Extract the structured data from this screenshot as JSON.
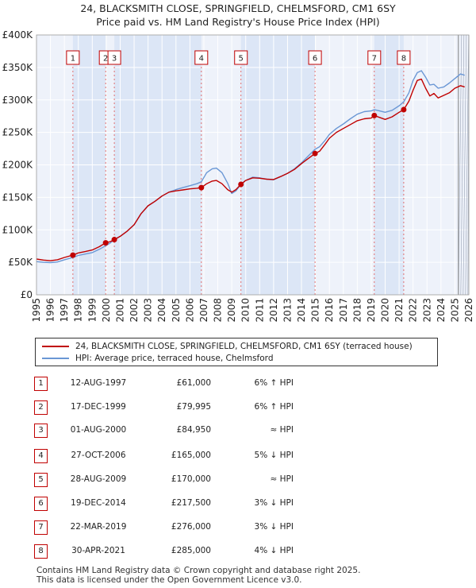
{
  "title": {
    "line1": "24, BLACKSMITH CLOSE, SPRINGFIELD, CHELMSFORD, CM1 6SY",
    "line2": "Price paid vs. HM Land Registry's House Price Index (HPI)"
  },
  "colors": {
    "property_line": "#c00000",
    "hpi_line": "#6a97d5",
    "shade": "#dce6f6",
    "grid": "#ffffff",
    "marker_line": "#e06060"
  },
  "legend": {
    "property_label": "24, BLACKSMITH CLOSE, SPRINGFIELD, CHELMSFORD, CM1 6SY (terraced house)",
    "hpi_label": "HPI: Average price, terraced house, Chelmsford"
  },
  "transactions": [
    {
      "num": "1",
      "date": "12-AUG-1997",
      "price": "£61,000",
      "hpi": "6% ↑ HPI"
    },
    {
      "num": "2",
      "date": "17-DEC-1999",
      "price": "£79,995",
      "hpi": "6% ↑ HPI"
    },
    {
      "num": "3",
      "date": "01-AUG-2000",
      "price": "£84,950",
      "hpi": "≈ HPI"
    },
    {
      "num": "4",
      "date": "27-OCT-2006",
      "price": "£165,000",
      "hpi": "5% ↓ HPI"
    },
    {
      "num": "5",
      "date": "28-AUG-2009",
      "price": "£170,000",
      "hpi": "≈ HPI"
    },
    {
      "num": "6",
      "date": "19-DEC-2014",
      "price": "£217,500",
      "hpi": "3% ↓ HPI"
    },
    {
      "num": "7",
      "date": "22-MAR-2019",
      "price": "£276,000",
      "hpi": "3% ↓ HPI"
    },
    {
      "num": "8",
      "date": "30-APR-2021",
      "price": "£285,000",
      "hpi": "4% ↓ HPI"
    }
  ],
  "footer": {
    "line1": "Contains HM Land Registry data © Crown copyright and database right 2025.",
    "line2": "This data is licensed under the Open Government Licence v3.0."
  },
  "chart_data": {
    "type": "line",
    "xlim": [
      1995,
      2026
    ],
    "ylim": [
      0,
      400000
    ],
    "x_ticks": [
      1995,
      1996,
      1997,
      1998,
      1999,
      2000,
      2001,
      2002,
      2003,
      2004,
      2005,
      2006,
      2007,
      2008,
      2009,
      2010,
      2011,
      2012,
      2013,
      2014,
      2015,
      2016,
      2017,
      2018,
      2019,
      2020,
      2021,
      2022,
      2023,
      2024,
      2025,
      2026
    ],
    "y_ticks": [
      0,
      50000,
      100000,
      150000,
      200000,
      250000,
      300000,
      350000,
      400000
    ],
    "y_tick_labels": [
      "£0",
      "£50K",
      "£100K",
      "£150K",
      "£200K",
      "£250K",
      "£300K",
      "£350K",
      "£400K"
    ],
    "forecast_start": 2025.25,
    "shaded_ranges": [
      [
        1997.61,
        1999.96
      ],
      [
        2000.58,
        2006.82
      ],
      [
        2009.66,
        2014.97
      ],
      [
        2019.22,
        2021.33
      ]
    ],
    "sales": [
      {
        "label": "1",
        "x": 1997.61,
        "y": 61000
      },
      {
        "label": "2",
        "x": 1999.96,
        "y": 79995
      },
      {
        "label": "3",
        "x": 2000.58,
        "y": 84950
      },
      {
        "label": "4",
        "x": 2006.82,
        "y": 165000
      },
      {
        "label": "5",
        "x": 2009.66,
        "y": 170000
      },
      {
        "label": "6",
        "x": 2014.97,
        "y": 217500
      },
      {
        "label": "7",
        "x": 2019.22,
        "y": 276000
      },
      {
        "label": "8",
        "x": 2021.33,
        "y": 285000
      }
    ],
    "series": [
      {
        "name": "24, BLACKSMITH CLOSE, SPRINGFIELD, CHELMSFORD, CM1 6SY (terraced house)",
        "x": [
          1995.0,
          1995.5,
          1996.0,
          1996.5,
          1997.0,
          1997.61,
          1998.0,
          1998.5,
          1999.0,
          1999.5,
          1999.96,
          2000.3,
          2000.58,
          2001.0,
          2001.5,
          2002.0,
          2002.5,
          2003.0,
          2003.5,
          2004.0,
          2004.5,
          2005.0,
          2005.5,
          2006.0,
          2006.5,
          2006.82,
          2007.2,
          2007.6,
          2007.9,
          2008.3,
          2008.7,
          2009.0,
          2009.3,
          2009.66,
          2010.0,
          2010.5,
          2011.0,
          2011.5,
          2012.0,
          2012.5,
          2013.0,
          2013.5,
          2014.0,
          2014.5,
          2014.97,
          2015.3,
          2015.7,
          2016.0,
          2016.5,
          2017.0,
          2017.5,
          2018.0,
          2018.5,
          2019.0,
          2019.22,
          2019.6,
          2020.0,
          2020.5,
          2021.0,
          2021.33,
          2021.7,
          2022.0,
          2022.3,
          2022.6,
          2022.9,
          2023.2,
          2023.5,
          2023.8,
          2024.2,
          2024.6,
          2025.0,
          2025.4,
          2025.7
        ],
        "y": [
          55000,
          53500,
          52500,
          54000,
          57500,
          61000,
          64500,
          66500,
          69000,
          74000,
          79995,
          82000,
          84950,
          90000,
          98000,
          108000,
          125000,
          137000,
          144000,
          152000,
          158000,
          160000,
          161500,
          163000,
          164000,
          165000,
          171000,
          175000,
          176000,
          171000,
          162000,
          158000,
          162000,
          170000,
          176000,
          180000,
          179500,
          178000,
          177500,
          182000,
          187000,
          193000,
          202000,
          210000,
          217500,
          221000,
          232000,
          241000,
          250000,
          256000,
          262000,
          268000,
          271000,
          272000,
          276000,
          273000,
          270000,
          274000,
          281000,
          285000,
          298000,
          315000,
          330000,
          332000,
          318000,
          306000,
          310000,
          303000,
          307000,
          311000,
          318000,
          322000,
          320000
        ]
      },
      {
        "name": "HPI: Average price, terraced house, Chelmsford",
        "x": [
          1995.0,
          1995.5,
          1996.0,
          1996.5,
          1997.0,
          1997.61,
          1998.0,
          1998.5,
          1999.0,
          1999.5,
          1999.96,
          2000.3,
          2000.58,
          2001.0,
          2001.5,
          2002.0,
          2002.5,
          2003.0,
          2003.5,
          2004.0,
          2004.5,
          2005.0,
          2005.5,
          2006.0,
          2006.5,
          2006.82,
          2007.2,
          2007.6,
          2007.9,
          2008.3,
          2008.7,
          2009.0,
          2009.3,
          2009.66,
          2010.0,
          2010.5,
          2011.0,
          2011.5,
          2012.0,
          2012.5,
          2013.0,
          2013.5,
          2014.0,
          2014.5,
          2014.97,
          2015.3,
          2015.7,
          2016.0,
          2016.5,
          2017.0,
          2017.5,
          2018.0,
          2018.5,
          2019.0,
          2019.22,
          2019.6,
          2020.0,
          2020.5,
          2021.0,
          2021.33,
          2021.7,
          2022.0,
          2022.3,
          2022.6,
          2022.9,
          2023.2,
          2023.5,
          2023.8,
          2024.2,
          2024.6,
          2025.0,
          2025.4,
          2025.7
        ],
        "y": [
          51000,
          50000,
          49500,
          50500,
          54000,
          57500,
          60500,
          62800,
          65000,
          70000,
          75500,
          80000,
          85000,
          90000,
          98000,
          108000,
          125000,
          137000,
          144000,
          152000,
          158000,
          162000,
          165000,
          168000,
          171000,
          174000,
          188000,
          194000,
          195000,
          188000,
          172000,
          156000,
          160000,
          170000,
          176000,
          181000,
          180000,
          178000,
          177000,
          182000,
          187000,
          194000,
          203000,
          214000,
          224000,
          228000,
          238000,
          247000,
          256000,
          263000,
          271000,
          278000,
          282000,
          283000,
          285000,
          283000,
          281000,
          284000,
          291000,
          297000,
          311000,
          330000,
          342000,
          345000,
          335000,
          323000,
          324000,
          318000,
          320000,
          326000,
          333000,
          340000,
          338000
        ]
      }
    ]
  }
}
